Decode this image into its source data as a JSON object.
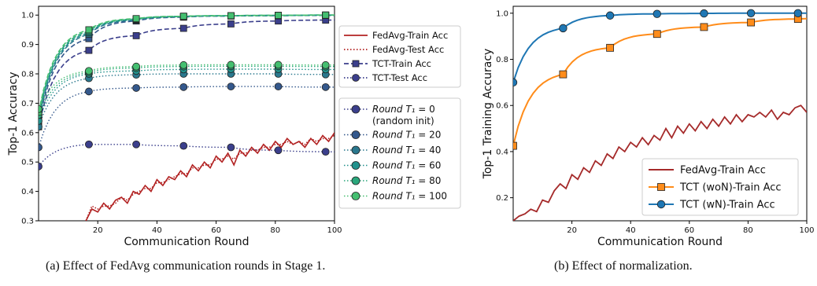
{
  "captions": {
    "a": "(a) Effect of FedAvg communication rounds in Stage 1.",
    "b": "(b) Effect of normalization."
  },
  "chart_data": [
    {
      "type": "line",
      "xlabel": "Communication Round",
      "ylabel": "Top-1 Accuracy",
      "xlim": [
        0,
        100
      ],
      "ylim": [
        0.3,
        1.03
      ],
      "xticks": [
        20,
        40,
        60,
        80,
        100
      ],
      "yticks": [
        0.3,
        0.4,
        0.5,
        0.6,
        0.7,
        0.8,
        0.9,
        1.0
      ],
      "grid": false,
      "legends": [
        {
          "placement": "right-top",
          "entries": [
            {
              "label": "FedAvg-Train Acc",
              "style": "solid"
            },
            {
              "label": "FedAvg-Test Acc",
              "style": "dotted"
            },
            {
              "label": "TCT-Train Acc",
              "style": "dashed-square",
              "color": "#3b3f8c"
            },
            {
              "label": "TCT-Test Acc",
              "style": "dotted-circle",
              "color": "#3b3f8c"
            }
          ]
        },
        {
          "placement": "right-bottom",
          "entries": [
            {
              "label": "Round T₁ = 0",
              "sub": "(random init)",
              "color": "#3b3f8c"
            },
            {
              "label": "Round T₁ = 20",
              "color": "#34588c"
            },
            {
              "label": "Round T₁ = 40",
              "color": "#2a788e"
            },
            {
              "label": "Round T₁ = 60",
              "color": "#21918c"
            },
            {
              "label": "Round T₁ = 80",
              "color": "#2aa77c"
            },
            {
              "label": "Round T₁ = 100",
              "color": "#44bf70"
            }
          ]
        }
      ],
      "fedavg_color": "#b22222",
      "fedavg_train": {
        "x": [
          16,
          18,
          20,
          22,
          24,
          26,
          28,
          30,
          32,
          34,
          36,
          38,
          40,
          42,
          44,
          46,
          48,
          50,
          52,
          54,
          56,
          58,
          60,
          62,
          64,
          66,
          68,
          70,
          72,
          74,
          76,
          78,
          80,
          82,
          84,
          86,
          88,
          90,
          92,
          94,
          96,
          98,
          100
        ],
        "y": [
          0.3,
          0.34,
          0.33,
          0.36,
          0.34,
          0.37,
          0.38,
          0.36,
          0.4,
          0.39,
          0.42,
          0.4,
          0.44,
          0.42,
          0.45,
          0.44,
          0.47,
          0.45,
          0.49,
          0.47,
          0.5,
          0.48,
          0.52,
          0.5,
          0.53,
          0.49,
          0.54,
          0.52,
          0.55,
          0.53,
          0.56,
          0.54,
          0.57,
          0.55,
          0.58,
          0.56,
          0.57,
          0.55,
          0.58,
          0.56,
          0.59,
          0.57,
          0.6
        ]
      },
      "fedavg_test": {
        "x": [
          16,
          18,
          20,
          22,
          24,
          26,
          28,
          30,
          32,
          34,
          36,
          38,
          40,
          42,
          44,
          46,
          48,
          50,
          52,
          54,
          56,
          58,
          60,
          62,
          64,
          66,
          68,
          70,
          72,
          74,
          76,
          78,
          80,
          82,
          84,
          86,
          88,
          90,
          92,
          94,
          96,
          98,
          100
        ],
        "y": [
          0.3,
          0.35,
          0.34,
          0.35,
          0.35,
          0.36,
          0.38,
          0.37,
          0.39,
          0.4,
          0.41,
          0.41,
          0.43,
          0.43,
          0.44,
          0.45,
          0.46,
          0.46,
          0.48,
          0.48,
          0.49,
          0.49,
          0.51,
          0.51,
          0.52,
          0.51,
          0.53,
          0.53,
          0.54,
          0.54,
          0.55,
          0.55,
          0.56,
          0.56,
          0.57,
          0.56,
          0.57,
          0.56,
          0.58,
          0.57,
          0.58,
          0.58,
          0.59
        ]
      },
      "series": [
        {
          "label": "Round T₁ = 0",
          "color": "#3b3f8c",
          "train": {
            "start": 0.62,
            "end": 1.0,
            "k": 30,
            "marks": [
              0,
              17,
              33,
              49,
              65,
              81,
              97
            ],
            "vals": [
              0.62,
              0.88,
              0.93,
              0.955,
              0.97,
              0.98,
              0.983
            ]
          },
          "test": {
            "marks": [
              0,
              17,
              33,
              49,
              65,
              81,
              97
            ],
            "vals": [
              0.485,
              0.56,
              0.56,
              0.555,
              0.55,
              0.54,
              0.535
            ]
          }
        },
        {
          "label": "Round T₁ = 20",
          "color": "#34588c",
          "train": {
            "marks": [
              0,
              17,
              33,
              49,
              65,
              81,
              97
            ],
            "vals": [
              0.63,
              0.92,
              0.98,
              0.993,
              0.997,
              0.998,
              0.999
            ]
          },
          "test": {
            "marks": [
              0,
              17,
              33,
              49,
              65,
              81,
              97
            ],
            "vals": [
              0.55,
              0.74,
              0.752,
              0.755,
              0.757,
              0.757,
              0.755
            ]
          }
        },
        {
          "label": "Round T₁ = 40",
          "color": "#2a788e",
          "train": {
            "marks": [
              0,
              17,
              33,
              49,
              65,
              81,
              97
            ],
            "vals": [
              0.64,
              0.935,
              0.983,
              0.994,
              0.997,
              0.998,
              0.999
            ]
          },
          "test": {
            "marks": [
              0,
              17,
              33,
              49,
              65,
              81,
              97
            ],
            "vals": [
              0.62,
              0.785,
              0.797,
              0.8,
              0.8,
              0.8,
              0.798
            ]
          }
        },
        {
          "label": "Round T₁ = 60",
          "color": "#21918c",
          "train": {
            "marks": [
              0,
              17,
              33,
              49,
              65,
              81,
              97
            ],
            "vals": [
              0.65,
              0.94,
              0.985,
              0.995,
              0.998,
              0.999,
              1.0
            ]
          },
          "test": {
            "marks": [
              0,
              17,
              33,
              49,
              65,
              81,
              97
            ],
            "vals": [
              0.64,
              0.8,
              0.81,
              0.815,
              0.816,
              0.816,
              0.815
            ]
          }
        },
        {
          "label": "Round T₁ = 80",
          "color": "#2aa77c",
          "train": {
            "marks": [
              0,
              17,
              33,
              49,
              65,
              81,
              97
            ],
            "vals": [
              0.66,
              0.945,
              0.987,
              0.996,
              0.998,
              0.999,
              1.0
            ]
          },
          "test": {
            "marks": [
              0,
              17,
              33,
              49,
              65,
              81,
              97
            ],
            "vals": [
              0.66,
              0.805,
              0.82,
              0.825,
              0.826,
              0.826,
              0.825
            ]
          }
        },
        {
          "label": "Round T₁ = 100",
          "color": "#44bf70",
          "train": {
            "marks": [
              0,
              17,
              33,
              49,
              65,
              81,
              97
            ],
            "vals": [
              0.67,
              0.95,
              0.988,
              0.996,
              0.998,
              0.999,
              1.0
            ]
          },
          "test": {
            "marks": [
              0,
              17,
              33,
              49,
              65,
              81,
              97
            ],
            "vals": [
              0.68,
              0.81,
              0.825,
              0.83,
              0.831,
              0.831,
              0.83
            ]
          }
        }
      ]
    },
    {
      "type": "line",
      "xlabel": "Communication Round",
      "ylabel": "Top-1 Training Accuracy",
      "xlim": [
        0,
        100
      ],
      "ylim": [
        0.1,
        1.03
      ],
      "xticks": [
        20,
        40,
        60,
        80,
        100
      ],
      "yticks": [
        0.2,
        0.4,
        0.6,
        0.8,
        1.0
      ],
      "grid": false,
      "legend": {
        "placement": "bottom-right",
        "entries": [
          {
            "label": "FedAvg-Train Acc",
            "color": "#a52a2a",
            "marker": "none"
          },
          {
            "label": "TCT (woN)-Train Acc",
            "color": "#ff8c1a",
            "marker": "square"
          },
          {
            "label": "TCT (wN)-Train Acc",
            "color": "#1f77b4",
            "marker": "circle"
          }
        ]
      },
      "series": [
        {
          "name": "FedAvg-Train Acc",
          "color": "#a52a2a",
          "x": [
            0,
            2,
            4,
            6,
            8,
            10,
            12,
            14,
            16,
            18,
            20,
            22,
            24,
            26,
            28,
            30,
            32,
            34,
            36,
            38,
            40,
            42,
            44,
            46,
            48,
            50,
            52,
            54,
            56,
            58,
            60,
            62,
            64,
            66,
            68,
            70,
            72,
            74,
            76,
            78,
            80,
            82,
            84,
            86,
            88,
            90,
            92,
            94,
            96,
            98,
            100
          ],
          "y": [
            0.1,
            0.12,
            0.13,
            0.15,
            0.14,
            0.19,
            0.18,
            0.23,
            0.26,
            0.24,
            0.3,
            0.28,
            0.33,
            0.31,
            0.36,
            0.34,
            0.39,
            0.37,
            0.42,
            0.4,
            0.44,
            0.42,
            0.46,
            0.43,
            0.47,
            0.45,
            0.5,
            0.46,
            0.51,
            0.48,
            0.52,
            0.49,
            0.53,
            0.5,
            0.54,
            0.51,
            0.55,
            0.52,
            0.56,
            0.53,
            0.56,
            0.55,
            0.57,
            0.55,
            0.58,
            0.54,
            0.57,
            0.56,
            0.59,
            0.6,
            0.57
          ]
        },
        {
          "name": "TCT (woN)-Train Acc",
          "color": "#ff8c1a",
          "marks": [
            0,
            17,
            33,
            49,
            65,
            81,
            97
          ],
          "vals": [
            0.425,
            0.735,
            0.85,
            0.91,
            0.94,
            0.96,
            0.975
          ]
        },
        {
          "name": "TCT (wN)-Train Acc",
          "color": "#1f77b4",
          "marks": [
            0,
            17,
            33,
            49,
            65,
            81,
            97
          ],
          "vals": [
            0.7,
            0.935,
            0.99,
            0.997,
            0.999,
            1.0,
            1.0
          ]
        }
      ]
    }
  ]
}
